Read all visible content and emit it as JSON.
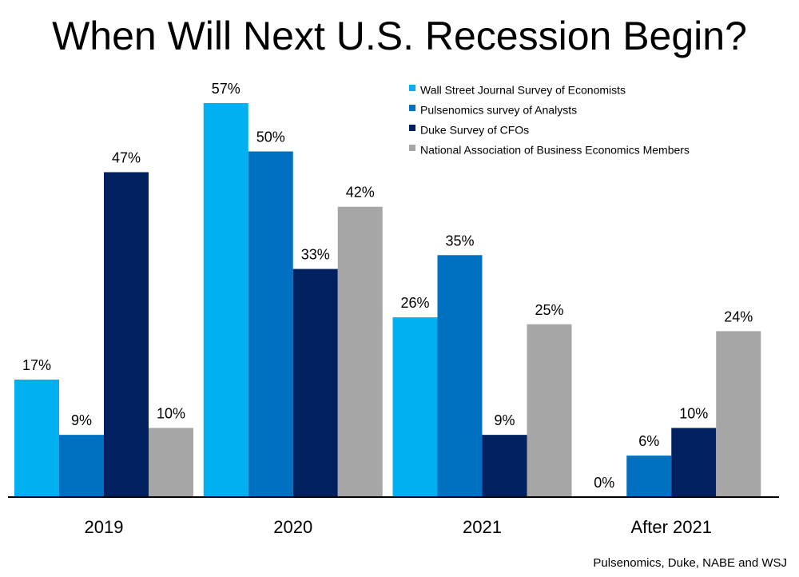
{
  "chart_data": {
    "type": "bar",
    "title": "When Will Next U.S. Recession Begin?",
    "categories": [
      "2019",
      "2020",
      "2021",
      "After 2021"
    ],
    "series": [
      {
        "name": "Wall Street Journal Survey of Economists",
        "values": [
          17,
          57,
          26,
          0
        ],
        "color": "#00b0f0"
      },
      {
        "name": "Pulsenomics survey of Analysts",
        "values": [
          9,
          50,
          35,
          6
        ],
        "color": "#0070c0"
      },
      {
        "name": "Duke Survey of CFOs",
        "values": [
          47,
          33,
          9,
          10
        ],
        "color": "#002060"
      },
      {
        "name": "National Association of Business Economics Members",
        "values": [
          10,
          42,
          25,
          24
        ],
        "color": "#a6a6a6"
      }
    ],
    "value_suffix": "%",
    "ylim": [
      0,
      60
    ],
    "legend_position": "top-right",
    "grid": false,
    "source": "Pulsenomics, Duke, NABE and WSJ"
  }
}
